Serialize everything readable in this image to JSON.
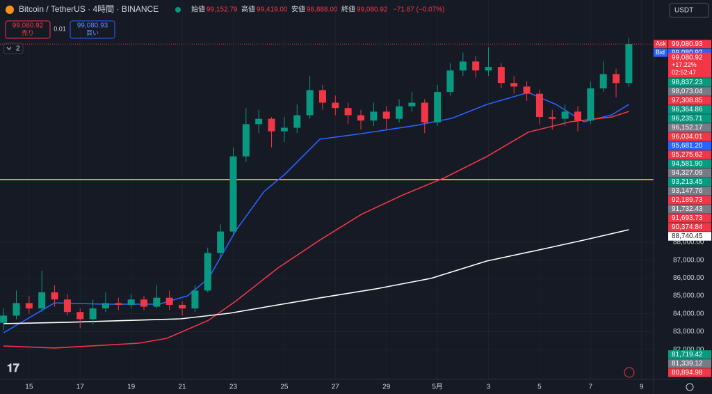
{
  "header": {
    "symbol": "Bitcoin / TetherUS · 4時間 · BINANCE",
    "ohlc": [
      {
        "label": "始値",
        "value": "99,152.79"
      },
      {
        "label": "高値",
        "value": "99,419.00"
      },
      {
        "label": "安値",
        "value": "98,888.00"
      },
      {
        "label": "終値",
        "value": "99,080.92"
      }
    ],
    "change": "−71.87 (−0.07%)"
  },
  "trade": {
    "sell_price": "99,080.92",
    "sell_label": "売り",
    "spread": "0.01",
    "buy_price": "99,080.93",
    "buy_label": "買い"
  },
  "indicators_count": "2",
  "currency": "USDT",
  "chart_data": {
    "type": "candlestick",
    "up_color": "#089981",
    "down_color": "#f23645",
    "x": [
      -1,
      -0.5,
      0,
      0.5,
      1,
      1.5,
      2,
      2.5,
      3,
      3.5,
      4,
      4.5,
      5,
      5.5,
      6,
      6.5,
      7,
      7.5,
      8,
      8.5,
      9,
      9.5,
      10,
      10.5,
      11,
      11.5,
      12,
      12.5,
      13,
      13.5,
      14,
      14.5,
      15,
      15.5,
      16,
      16.5,
      17,
      17.5,
      18,
      18.5,
      19,
      19.5,
      20,
      20.5,
      21,
      21.5,
      22,
      22.5,
      23,
      23.5
    ],
    "open": [
      83500,
      83900,
      84600,
      84300,
      85200,
      84800,
      84100,
      83700,
      84300,
      84600,
      84500,
      84800,
      84400,
      84900,
      84500,
      84300,
      85300,
      87400,
      88600,
      92800,
      94600,
      94900,
      94200,
      94400,
      95100,
      96500,
      95800,
      95500,
      95100,
      94800,
      95300,
      94900,
      95600,
      95800,
      94700,
      96400,
      97600,
      98100,
      97600,
      97800,
      96900,
      96700,
      96300,
      95000,
      94900,
      95300,
      94800,
      96600,
      97400,
      96900
    ],
    "high": [
      84300,
      85300,
      85000,
      86400,
      85600,
      85100,
      84300,
      84800,
      85200,
      84900,
      85100,
      85000,
      85600,
      85300,
      84700,
      85600,
      87700,
      89000,
      93300,
      95500,
      95400,
      95000,
      95000,
      95700,
      97300,
      96800,
      96200,
      95800,
      95400,
      95800,
      95600,
      96000,
      96400,
      96000,
      96800,
      98000,
      98600,
      98400,
      98900,
      98000,
      97300,
      97000,
      96500,
      95400,
      95700,
      95600,
      97000,
      98100,
      97700,
      99419
    ],
    "low": [
      83100,
      83700,
      84000,
      84100,
      84400,
      83900,
      83200,
      83400,
      84100,
      84200,
      84300,
      84200,
      84300,
      84200,
      83900,
      84100,
      85200,
      87100,
      88400,
      92500,
      94100,
      93300,
      93600,
      94100,
      94900,
      95400,
      95100,
      94600,
      94300,
      94500,
      94300,
      94700,
      95300,
      94100,
      94500,
      96200,
      97300,
      97200,
      97300,
      96600,
      96300,
      95900,
      94600,
      94300,
      94500,
      94200,
      94600,
      96400,
      96100,
      96700
    ],
    "close": [
      83900,
      84600,
      84300,
      85200,
      84800,
      84100,
      83700,
      84300,
      84600,
      84500,
      84800,
      84400,
      84900,
      84500,
      84300,
      85300,
      87400,
      88600,
      92800,
      94600,
      94900,
      94200,
      94400,
      95100,
      96500,
      95800,
      95500,
      95100,
      94800,
      95300,
      94900,
      95600,
      95800,
      94700,
      96400,
      97600,
      98100,
      97600,
      97800,
      96900,
      96700,
      96300,
      95000,
      94900,
      95300,
      94800,
      96600,
      97400,
      96900,
      99080.92
    ],
    "series": [
      {
        "color": "#2962ff",
        "x": [
          -1,
          1,
          2.9,
          5.1,
          6.2,
          7.03,
          8.12,
          9.21,
          10.03,
          11.39,
          13.02,
          15.2,
          16.57,
          17.93,
          19.56,
          20.65,
          21.74,
          22.83,
          23.5
        ],
        "values": [
          82940,
          84610,
          84540,
          84540,
          85000,
          85980,
          88700,
          90840,
          91810,
          93760,
          94070,
          94540,
          94930,
          95700,
          96370,
          95700,
          94730,
          95120,
          95700
        ]
      },
      {
        "color": "#f23645",
        "x": [
          -1,
          1,
          4.3,
          5.4,
          7.03,
          8.12,
          9.75,
          11.39,
          13.02,
          14.66,
          16.3,
          17.93,
          19.56,
          21.2,
          22.83,
          23.5
        ],
        "values": [
          82200,
          82090,
          82360,
          82630,
          83640,
          84730,
          86560,
          88120,
          89560,
          90650,
          91620,
          92790,
          94150,
          94730,
          95000,
          95310
        ]
      },
      {
        "color": "#ffffff",
        "x": [
          -1,
          1.58,
          5.94,
          7.85,
          9.75,
          11.39,
          13.57,
          15.75,
          17.93,
          19.84,
          21.74,
          23.5
        ],
        "values": [
          83450,
          83530,
          83720,
          84030,
          84500,
          84890,
          85390,
          85980,
          86950,
          87530,
          88120,
          88700
        ]
      }
    ],
    "horizontal_line": {
      "value": 91500,
      "color": "#f7e600"
    },
    "xlim": [
      -1.14,
      24.47
    ],
    "xticks": [
      {
        "value": 0,
        "label": "15"
      },
      {
        "value": 2,
        "label": "17"
      },
      {
        "value": 4,
        "label": "19"
      },
      {
        "value": 6,
        "label": "21"
      },
      {
        "value": 8,
        "label": "23"
      },
      {
        "value": 10,
        "label": "25"
      },
      {
        "value": 12,
        "label": "27"
      },
      {
        "value": 14,
        "label": "29"
      },
      {
        "value": 16,
        "label": "5月"
      },
      {
        "value": 18,
        "label": "3"
      },
      {
        "value": 20,
        "label": "5"
      },
      {
        "value": 22,
        "label": "7"
      },
      {
        "value": 24,
        "label": "9"
      }
    ],
    "ylim": [
      80530,
      100450
    ],
    "yticks": [
      {
        "value": 88000,
        "label": "88,000.00"
      },
      {
        "value": 87000,
        "label": "87,000.00"
      },
      {
        "value": 86000,
        "label": "86,000.00"
      },
      {
        "value": 85000,
        "label": "85,000.00"
      },
      {
        "value": 84000,
        "label": "84,000.00"
      },
      {
        "value": 83000,
        "label": "83,000.00"
      },
      {
        "value": 82000,
        "label": "82,000.00"
      }
    ],
    "ask": {
      "tag": "Ask",
      "value": 99080.93,
      "label": "99,080.93",
      "color": "#f23645"
    },
    "bid": {
      "tag": "Bid",
      "value": 99080.92,
      "label": "99,080.92",
      "color": "#2962ff"
    },
    "last_price": {
      "label": "99,080.92",
      "change": "+17.22%",
      "countdown": "02:52:47",
      "color": "#f23645"
    },
    "price_labels": [
      {
        "value": 98837.23,
        "label": "98,837.23",
        "color": "#089981"
      },
      {
        "value": 98073.04,
        "label": "98,073.04",
        "color": "#787b86"
      },
      {
        "value": 97308.85,
        "label": "97,308.85",
        "color": "#f23645"
      },
      {
        "value": 96364.86,
        "label": "96,364.86",
        "color": "#089981"
      },
      {
        "value": 96235.71,
        "label": "96,235.71",
        "color": "#089981"
      },
      {
        "value": 96152.17,
        "label": "96,152.17",
        "color": "#787b86"
      },
      {
        "value": 96034.01,
        "label": "96,034.01",
        "color": "#f23645"
      },
      {
        "value": 95681.2,
        "label": "95,681.20",
        "color": "#2962ff"
      },
      {
        "value": 95275.62,
        "label": "95,275.62",
        "color": "#f23645"
      },
      {
        "value": 94581.9,
        "label": "94,581.90",
        "color": "#089981"
      },
      {
        "value": 94327.09,
        "label": "94,327.09",
        "color": "#787b86"
      },
      {
        "value": 93213.45,
        "label": "93,213.45",
        "color": "#089981"
      },
      {
        "value": 93147.76,
        "label": "93,147.76",
        "color": "#787b86"
      },
      {
        "value": 92189.73,
        "label": "92,189.73",
        "color": "#f23645"
      },
      {
        "value": 91732.43,
        "label": "91,732.43",
        "color": "#787b86"
      },
      {
        "value": 91693.73,
        "label": "91,693.73",
        "color": "#f23645"
      },
      {
        "value": 90374.84,
        "label": "90,374.84",
        "color": "#f23645"
      },
      {
        "value": 88740.45,
        "label": "88,740.45",
        "color": "#ffffff"
      },
      {
        "value": 81719.42,
        "label": "81,719.42",
        "color": "#089981"
      },
      {
        "value": 81339.12,
        "label": "81,339.12",
        "color": "#787b86"
      },
      {
        "value": 80894.98,
        "label": "80,894.98",
        "color": "#f23645"
      }
    ]
  }
}
